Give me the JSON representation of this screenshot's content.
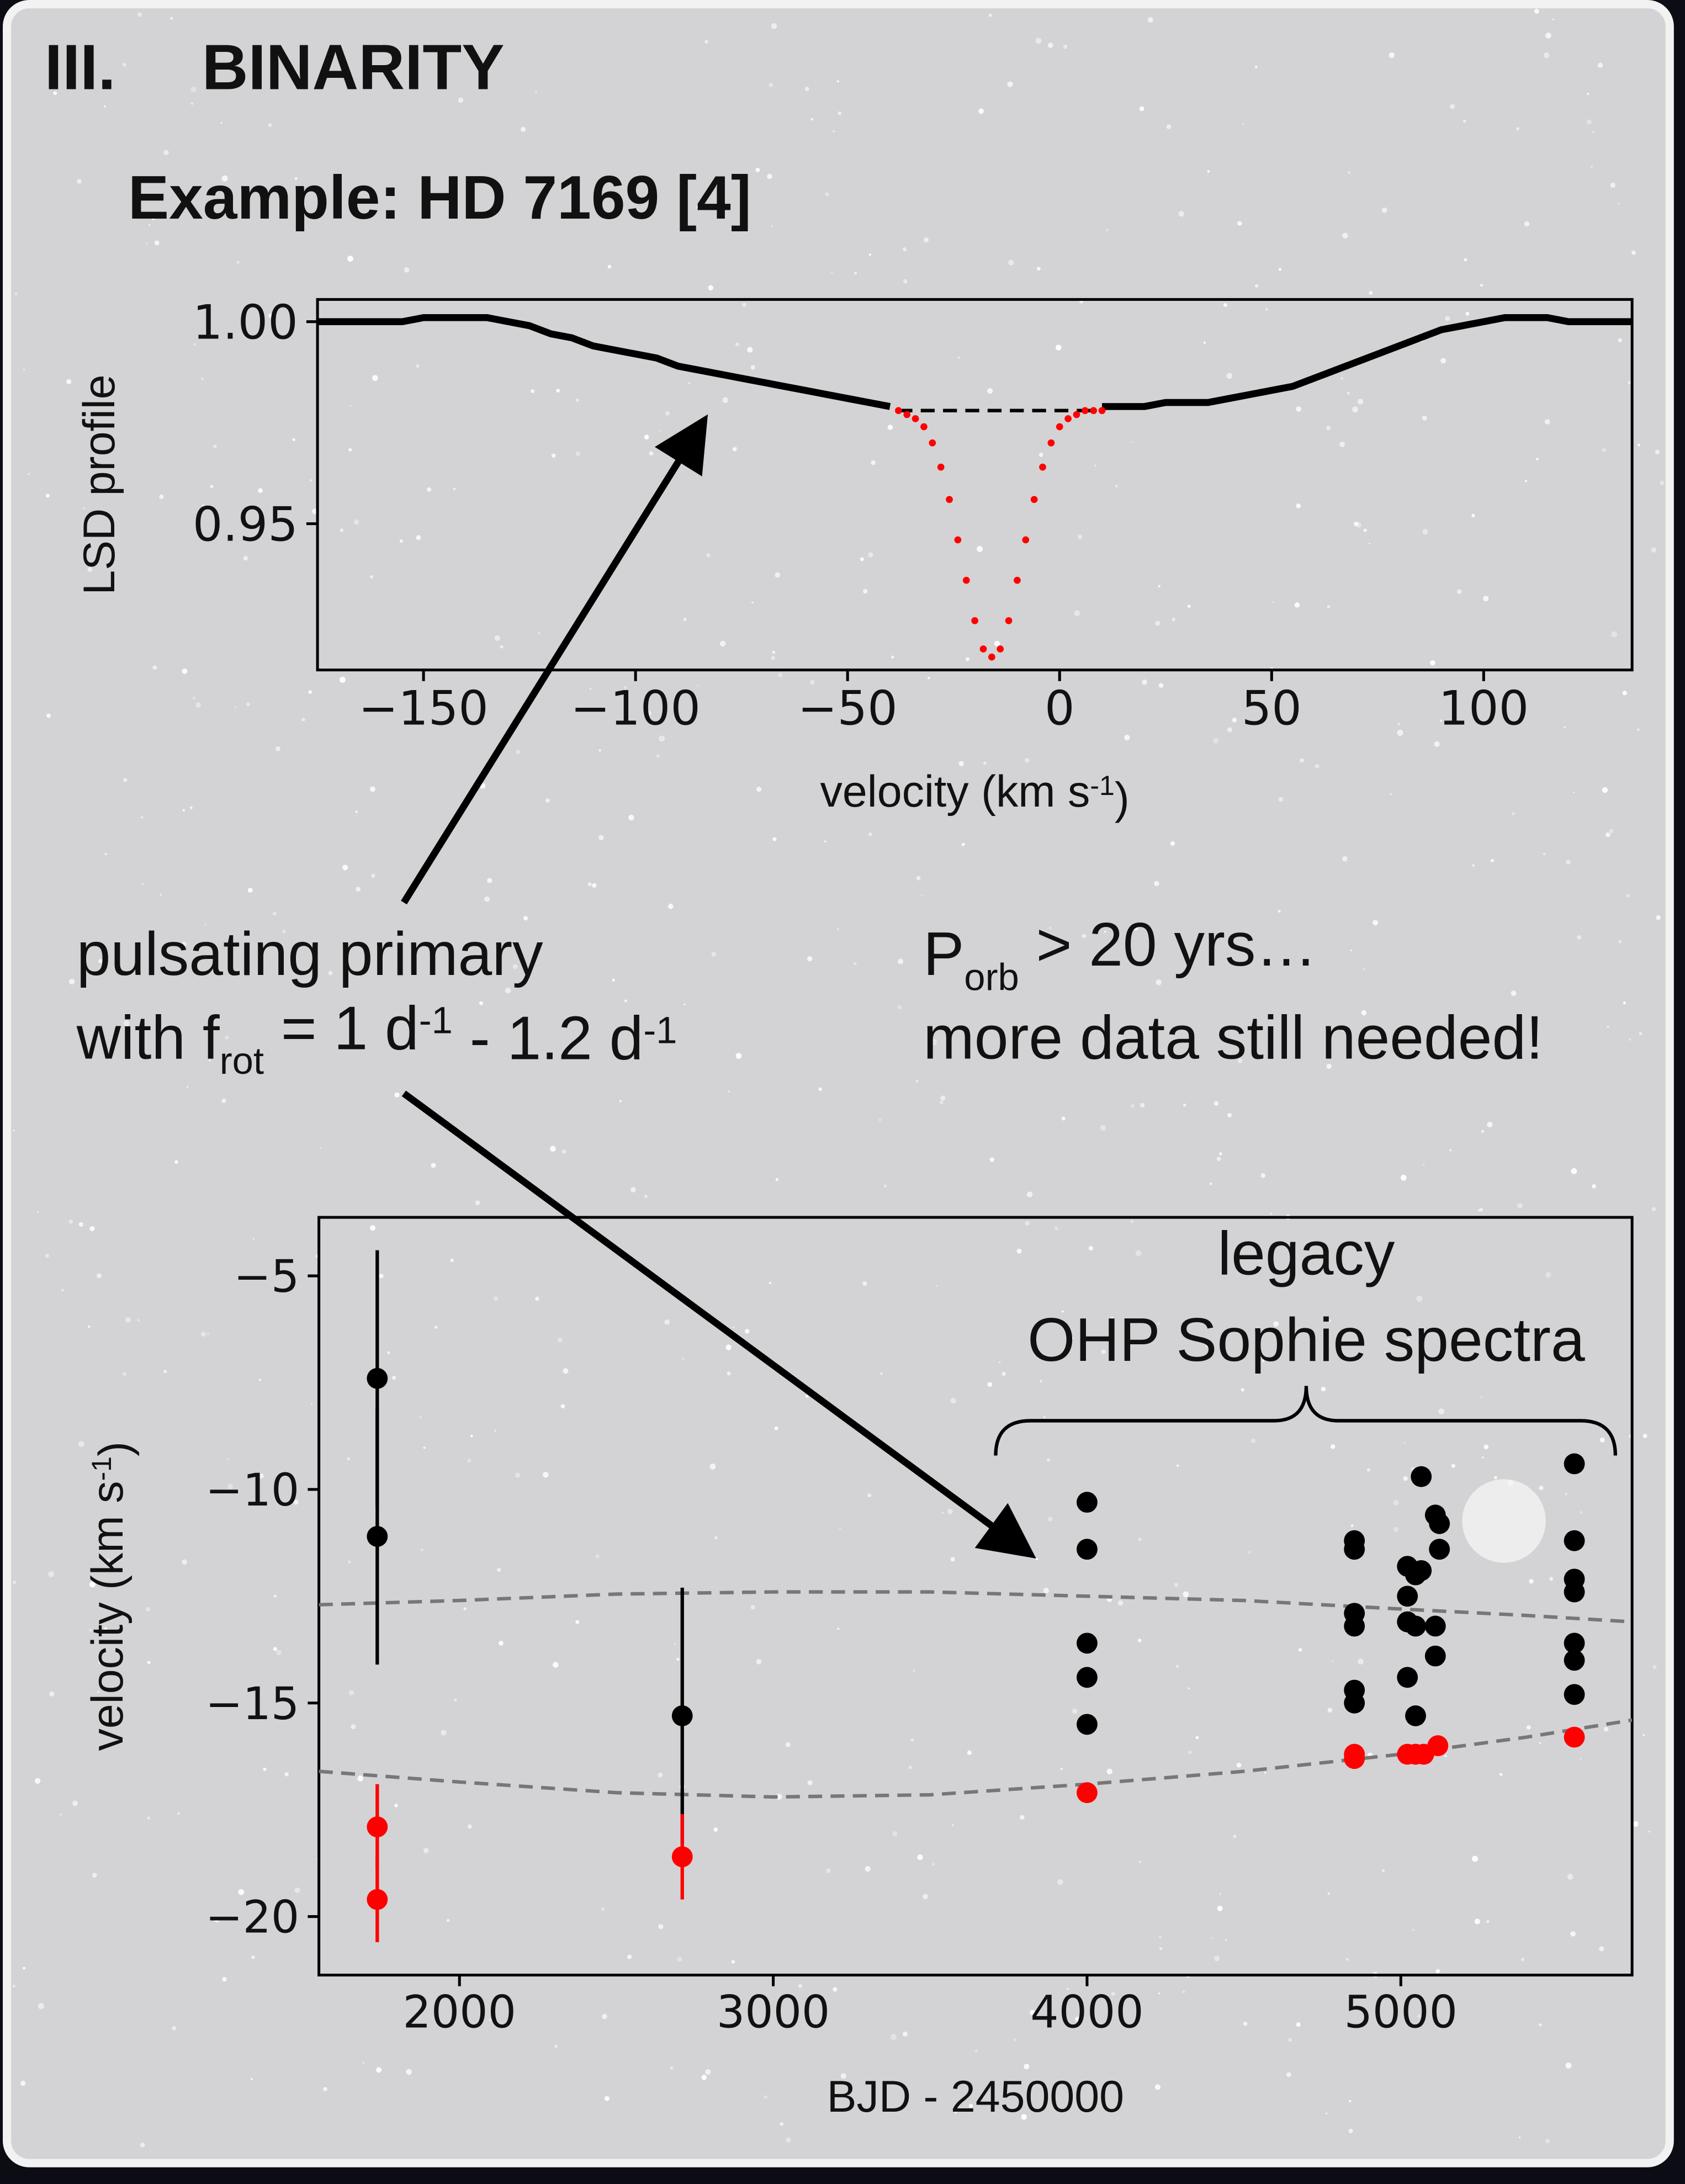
{
  "header": {
    "section": "III.",
    "title": "BINARITY",
    "subtitle": "Example: HD 7169 [4]"
  },
  "annotations": {
    "primary_line1": "pulsating primary",
    "primary_line2": [
      "with f",
      "rot",
      " = 1 d",
      "-1",
      " - 1.2 d",
      "-1"
    ],
    "porb_line1": [
      "P",
      "orb",
      " > 20 yrs…"
    ],
    "porb_line2": "more data still needed!"
  },
  "chart_data": [
    {
      "type": "line",
      "xlabel": [
        "velocity (km s",
        "-1",
        ")"
      ],
      "ylabel": "LSD profile",
      "xlim": [
        -175,
        135
      ],
      "ylim": [
        0.9138,
        1.0055
      ],
      "xticks": [
        {
          "value": -150,
          "label": "−150"
        },
        {
          "value": -100,
          "label": "−100"
        },
        {
          "value": -50,
          "label": "−50"
        },
        0,
        50,
        100
      ],
      "yticks": [
        {
          "value": 1,
          "label": "1.00"
        },
        0.95
      ],
      "series": [
        {
          "color": "#000000",
          "linestyle": "solid",
          "x": [
            -175,
            -170,
            -165,
            -160,
            -155,
            -150,
            -145,
            -140,
            -135,
            -130,
            -125,
            -120,
            -115,
            -110,
            -105,
            -100,
            -95,
            -90,
            -85,
            -80,
            -75,
            -70,
            -65,
            -60,
            -55,
            -50,
            -45,
            -40,
            -15,
            10,
            15,
            20,
            25,
            30,
            35,
            40,
            45,
            50,
            55,
            60,
            65,
            70,
            75,
            80,
            85,
            90,
            95,
            100,
            105,
            110,
            115,
            120,
            125,
            130,
            135
          ],
          "values": [
            1.0,
            1.0,
            1.0,
            1.0,
            1.0,
            1.001,
            1.001,
            1.001,
            1.001,
            1.0,
            0.999,
            0.997,
            0.996,
            0.994,
            0.993,
            0.992,
            0.991,
            0.989,
            0.988,
            0.987,
            0.986,
            0.985,
            0.984,
            0.983,
            0.982,
            0.981,
            0.98,
            0.979,
            null,
            0.979,
            0.979,
            0.979,
            0.98,
            0.98,
            0.98,
            0.981,
            0.982,
            0.983,
            0.984,
            0.986,
            0.988,
            0.99,
            0.992,
            0.994,
            0.996,
            0.998,
            0.999,
            1.0,
            1.001,
            1.001,
            1.001,
            1.0,
            1.0,
            1.0,
            1.0
          ]
        },
        {
          "color": "#000000",
          "linestyle": "dashed",
          "x": [
            -38,
            10
          ],
          "values": [
            0.978,
            0.978
          ]
        },
        {
          "color": "#ff0000",
          "marker": ".",
          "x": [
            -38,
            -36,
            -34,
            -32,
            -30,
            -28,
            -26,
            -24,
            -22,
            -20,
            -18,
            -16,
            -14,
            -12,
            -10,
            -8,
            -6,
            -4,
            -2,
            0,
            2,
            4,
            6,
            8,
            10
          ],
          "values": [
            0.978,
            0.977,
            0.976,
            0.974,
            0.97,
            0.964,
            0.956,
            0.946,
            0.936,
            0.926,
            0.919,
            0.917,
            0.919,
            0.926,
            0.936,
            0.946,
            0.956,
            0.964,
            0.97,
            0.974,
            0.976,
            0.977,
            0.978,
            0.978,
            0.978
          ]
        }
      ]
    },
    {
      "type": "scatter",
      "xlabel": "BJD - 2450000",
      "ylabel": [
        "velocity (km s",
        "-1",
        ")"
      ],
      "annotations": [
        "legacy",
        "OHP Sophie spectra"
      ],
      "xlim": [
        1552,
        5737
      ],
      "ylim": [
        -21.37,
        -3.63
      ],
      "xticks": [
        2000,
        3000,
        4000,
        5000
      ],
      "yticks": [
        {
          "value": -5,
          "label": "−5"
        },
        {
          "value": -10,
          "label": "−10"
        },
        {
          "value": -15,
          "label": "−15"
        },
        {
          "value": -20,
          "label": "−20"
        }
      ],
      "series": [
        {
          "color": "#777777",
          "linestyle": "dashed",
          "x": [
            1552,
            2000,
            2500,
            3000,
            3500,
            4000,
            4500,
            5000,
            5400,
            5737
          ],
          "values": [
            -12.7,
            -12.6,
            -12.45,
            -12.4,
            -12.4,
            -12.5,
            -12.6,
            -12.8,
            -12.95,
            -13.1
          ]
        },
        {
          "color": "#777777",
          "linestyle": "dashed",
          "x": [
            1552,
            2000,
            2500,
            3000,
            3500,
            4000,
            4500,
            5000,
            5400,
            5737
          ],
          "values": [
            -16.6,
            -16.85,
            -17.1,
            -17.2,
            -17.15,
            -16.9,
            -16.6,
            -16.2,
            -15.8,
            -15.4
          ]
        },
        {
          "color": "#000000",
          "marker": "o",
          "x": [
            1738,
            1738,
            2710,
            4000,
            4000,
            4000,
            4000,
            4000,
            4852,
            4852,
            4852,
            4852,
            4852,
            4852,
            5021,
            5021,
            5021,
            5021,
            5047,
            5047,
            5047,
            5065,
            5065,
            5110,
            5110,
            5110,
            5123,
            5123,
            5553,
            5553,
            5553,
            5553,
            5553,
            5553,
            5553
          ],
          "values": [
            -7.4,
            -11.1,
            -15.3,
            -10.3,
            -11.4,
            -13.6,
            -14.4,
            -15.5,
            -11.2,
            -11.4,
            -12.9,
            -13.2,
            -14.7,
            -15.0,
            -11.8,
            -12.5,
            -13.1,
            -14.4,
            -12.0,
            -13.2,
            -15.3,
            -9.7,
            -11.9,
            -10.6,
            -13.2,
            -13.9,
            -10.8,
            -11.4,
            -9.4,
            -11.2,
            -12.1,
            -12.4,
            -13.6,
            -14.0,
            -14.8
          ],
          "errors": [
            3.0,
            3.0,
            3.0,
            null,
            null,
            null,
            null,
            null,
            null,
            null,
            null,
            null,
            null,
            null,
            null,
            null,
            null,
            null,
            null,
            null,
            null,
            null,
            null,
            null,
            null,
            null,
            null,
            null,
            null,
            null,
            null,
            null,
            null,
            null,
            null
          ]
        },
        {
          "color": "#ff0000",
          "marker": "o",
          "x": [
            1738,
            1738,
            2710,
            4000,
            4852,
            4852,
            5021,
            5047,
            5073,
            5118,
            5553
          ],
          "values": [
            -17.9,
            -19.6,
            -18.6,
            -17.1,
            -16.2,
            -16.3,
            -16.2,
            -16.2,
            -16.2,
            -16.0,
            -15.8
          ],
          "errors": [
            1.0,
            1.0,
            1.0,
            null,
            null,
            null,
            null,
            null,
            null,
            null,
            null
          ]
        }
      ]
    }
  ]
}
